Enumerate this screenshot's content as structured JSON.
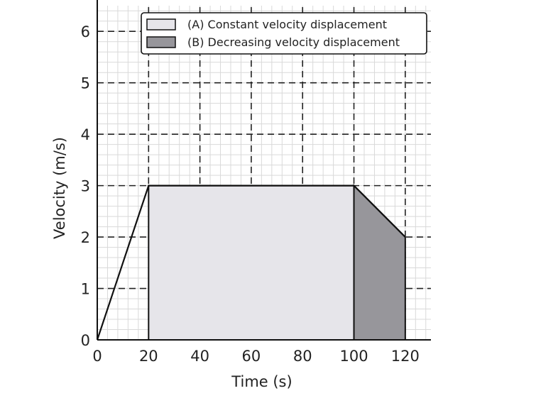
{
  "chart_data": {
    "type": "line",
    "xlabel": "Time (s)",
    "ylabel": "Velocity (m/s)",
    "xlim": [
      0,
      130
    ],
    "ylim": [
      0,
      6.5
    ],
    "x_ticks": [
      0,
      20,
      40,
      60,
      80,
      100,
      120
    ],
    "y_ticks": [
      0,
      1,
      2,
      3,
      4,
      5,
      6
    ],
    "grid": "on (major dashed, minor light)",
    "legend_placement": "top-center",
    "series": [
      {
        "x": [
          0,
          20,
          100,
          120
        ],
        "y": [
          0,
          3,
          3,
          2
        ],
        "color": "#111111"
      }
    ],
    "regions": [
      {
        "name": "(A) Constant velocity displacement",
        "x_start": 20,
        "x_end": 100,
        "y_start": 3,
        "y_end": 3,
        "color": "#e6e5ea"
      },
      {
        "name": "(B) Decreasing velocity displacement",
        "x_start": 100,
        "x_end": 120,
        "y_start": 3,
        "y_end": 2,
        "color": "#97969b"
      }
    ]
  }
}
